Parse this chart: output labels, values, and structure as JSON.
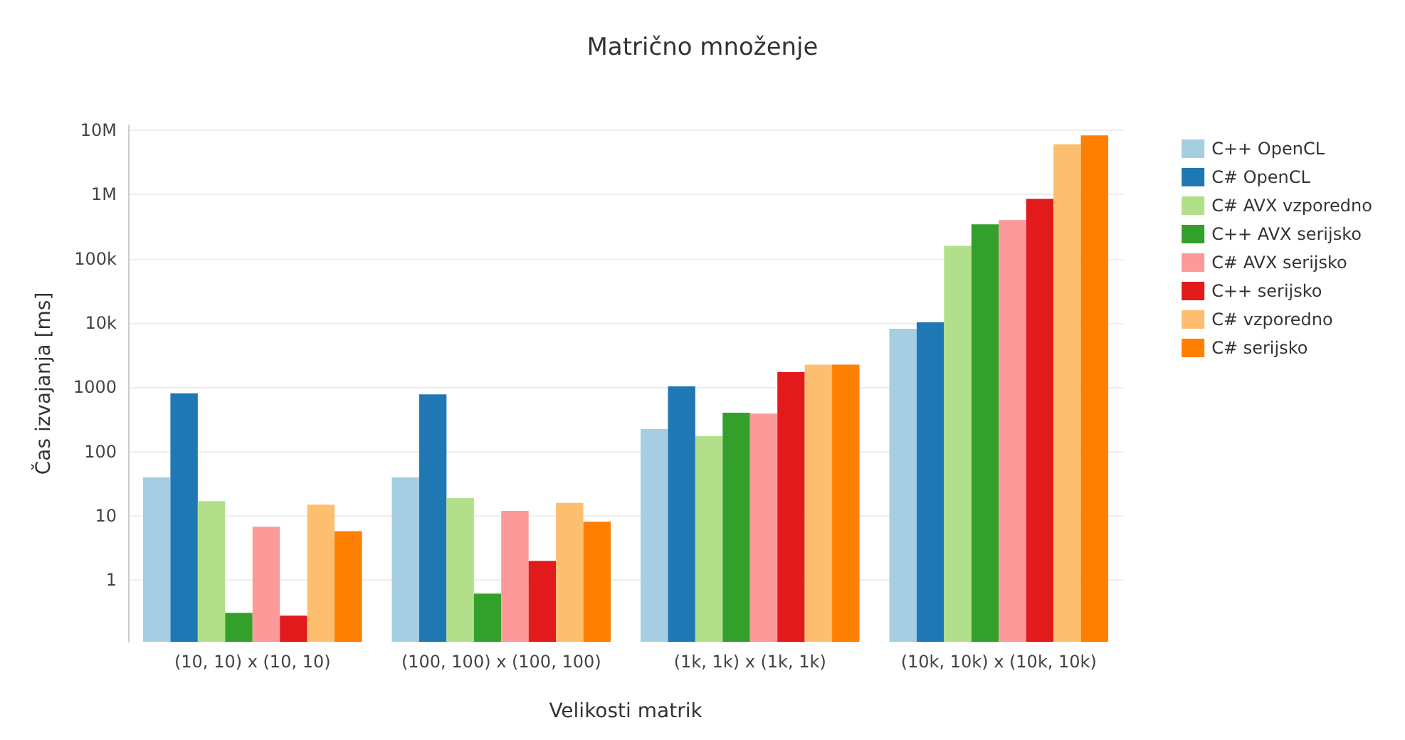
{
  "chart_data": {
    "type": "bar",
    "title": "Matrično množenje",
    "xlabel": "Velikosti matrik",
    "ylabel": "Čas izvajanja [ms]",
    "categories": [
      "(10, 10) x (10, 10)",
      "(100, 100) x (100, 100)",
      "(1k, 1k) x (1k, 1k)",
      "(10k, 10k) x (10k, 10k)"
    ],
    "series": [
      {
        "name": "C++ OpenCL",
        "color": "#a6cee3",
        "values": [
          40,
          40,
          225,
          8170
        ]
      },
      {
        "name": "C# OpenCL",
        "color": "#1f78b4",
        "values": [
          810,
          780,
          1040,
          10300
        ]
      },
      {
        "name": "C# AVX vzporedno",
        "color": "#b2df8a",
        "values": [
          17,
          19,
          175,
          159000
        ]
      },
      {
        "name": "C++ AVX serijsko",
        "color": "#33a02c",
        "values": [
          0.31,
          0.62,
          405,
          345000
        ]
      },
      {
        "name": "C# AVX serijsko",
        "color": "#fb9a99",
        "values": [
          6.8,
          12,
          392,
          402000
        ]
      },
      {
        "name": "C++ serijsko",
        "color": "#e31a1c",
        "values": [
          0.28,
          2.0,
          1730,
          860000
        ]
      },
      {
        "name": "C# vzporedno",
        "color": "#fdbf6f",
        "values": [
          15,
          16,
          2260,
          6080000
        ]
      },
      {
        "name": "C# serijsko",
        "color": "#ff7f00",
        "values": [
          5.8,
          8.1,
          2260,
          8370000
        ]
      }
    ],
    "log": true,
    "ylim": [
      0.11,
      12000000
    ],
    "yticks": [
      1,
      10,
      100,
      1000,
      {
        "value": 10000,
        "label": "10k"
      },
      {
        "value": 100000,
        "label": "100k"
      },
      {
        "value": 1000000,
        "label": "1M"
      },
      {
        "value": 10000000,
        "label": "10M"
      }
    ],
    "grid": "y",
    "legend": "top right"
  }
}
